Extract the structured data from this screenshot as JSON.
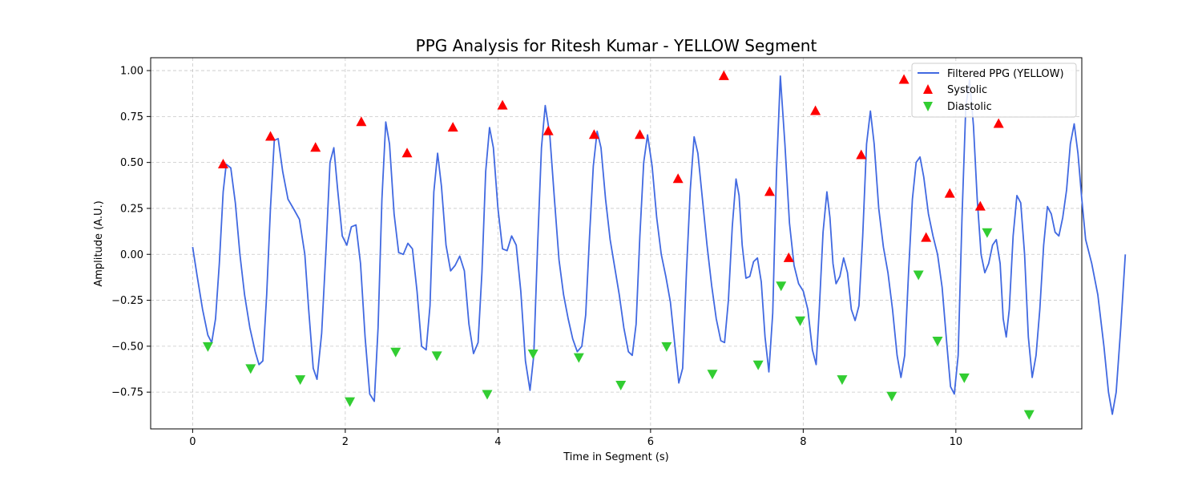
{
  "chart_data": {
    "type": "line",
    "title": "PPG Analysis for Ritesh Kumar - YELLOW Segment",
    "xlabel": "Time in Segment (s)",
    "ylabel": "Amplitude (A.U.)",
    "xlim": [
      -0.55,
      11.65
    ],
    "ylim": [
      -0.95,
      1.07
    ],
    "xticks": [
      0,
      2,
      4,
      6,
      8,
      10
    ],
    "yticks": [
      -0.75,
      -0.5,
      -0.25,
      0.0,
      0.25,
      0.5,
      0.75,
      1.0
    ],
    "xtick_labels": [
      "0",
      "2",
      "4",
      "6",
      "8",
      "10"
    ],
    "ytick_labels": [
      "−0.75",
      "−0.50",
      "−0.25",
      "0.00",
      "0.25",
      "0.50",
      "0.75",
      "1.00"
    ],
    "grid": true,
    "legend_position": "top-right",
    "series": [
      {
        "name": "Filtered PPG (YELLOW)",
        "color": "#4169e1",
        "points": [
          [
            0.0,
            0.04
          ],
          [
            0.06,
            -0.12
          ],
          [
            0.13,
            -0.3
          ],
          [
            0.2,
            -0.44
          ],
          [
            0.25,
            -0.48
          ],
          [
            0.3,
            -0.35
          ],
          [
            0.35,
            -0.05
          ],
          [
            0.4,
            0.34
          ],
          [
            0.44,
            0.49
          ],
          [
            0.5,
            0.47
          ],
          [
            0.56,
            0.28
          ],
          [
            0.62,
            0.0
          ],
          [
            0.68,
            -0.22
          ],
          [
            0.75,
            -0.4
          ],
          [
            0.82,
            -0.53
          ],
          [
            0.87,
            -0.6
          ],
          [
            0.92,
            -0.58
          ],
          [
            0.97,
            -0.22
          ],
          [
            1.02,
            0.25
          ],
          [
            1.07,
            0.62
          ],
          [
            1.12,
            0.63
          ],
          [
            1.18,
            0.45
          ],
          [
            1.25,
            0.3
          ],
          [
            1.32,
            0.25
          ],
          [
            1.4,
            0.19
          ],
          [
            1.47,
            0.0
          ],
          [
            1.52,
            -0.3
          ],
          [
            1.58,
            -0.62
          ],
          [
            1.63,
            -0.68
          ],
          [
            1.69,
            -0.43
          ],
          [
            1.75,
            0.05
          ],
          [
            1.8,
            0.5
          ],
          [
            1.85,
            0.58
          ],
          [
            1.9,
            0.35
          ],
          [
            1.96,
            0.1
          ],
          [
            2.02,
            0.05
          ],
          [
            2.08,
            0.15
          ],
          [
            2.14,
            0.16
          ],
          [
            2.2,
            -0.05
          ],
          [
            2.26,
            -0.45
          ],
          [
            2.32,
            -0.76
          ],
          [
            2.38,
            -0.8
          ],
          [
            2.43,
            -0.4
          ],
          [
            2.48,
            0.3
          ],
          [
            2.53,
            0.72
          ],
          [
            2.58,
            0.6
          ],
          [
            2.64,
            0.22
          ],
          [
            2.7,
            0.01
          ],
          [
            2.76,
            0.0
          ],
          [
            2.82,
            0.06
          ],
          [
            2.88,
            0.03
          ],
          [
            2.94,
            -0.2
          ],
          [
            3.0,
            -0.5
          ],
          [
            3.06,
            -0.52
          ],
          [
            3.11,
            -0.28
          ],
          [
            3.16,
            0.34
          ],
          [
            3.21,
            0.55
          ],
          [
            3.26,
            0.37
          ],
          [
            3.32,
            0.05
          ],
          [
            3.38,
            -0.09
          ],
          [
            3.44,
            -0.06
          ],
          [
            3.5,
            -0.01
          ],
          [
            3.56,
            -0.09
          ],
          [
            3.62,
            -0.38
          ],
          [
            3.68,
            -0.54
          ],
          [
            3.74,
            -0.48
          ],
          [
            3.79,
            -0.1
          ],
          [
            3.84,
            0.45
          ],
          [
            3.89,
            0.69
          ],
          [
            3.94,
            0.58
          ],
          [
            4.0,
            0.25
          ],
          [
            4.06,
            0.03
          ],
          [
            4.12,
            0.02
          ],
          [
            4.18,
            0.1
          ],
          [
            4.24,
            0.05
          ],
          [
            4.3,
            -0.2
          ],
          [
            4.36,
            -0.58
          ],
          [
            4.42,
            -0.74
          ],
          [
            4.47,
            -0.55
          ],
          [
            4.52,
            0.05
          ],
          [
            4.57,
            0.58
          ],
          [
            4.62,
            0.81
          ],
          [
            4.68,
            0.65
          ],
          [
            4.74,
            0.3
          ],
          [
            4.8,
            -0.03
          ],
          [
            4.86,
            -0.22
          ],
          [
            4.92,
            -0.35
          ],
          [
            4.98,
            -0.46
          ],
          [
            5.04,
            -0.53
          ],
          [
            5.1,
            -0.5
          ],
          [
            5.15,
            -0.33
          ],
          [
            5.2,
            0.1
          ],
          [
            5.25,
            0.48
          ],
          [
            5.3,
            0.67
          ],
          [
            5.35,
            0.58
          ],
          [
            5.41,
            0.3
          ],
          [
            5.47,
            0.08
          ],
          [
            5.53,
            -0.07
          ],
          [
            5.59,
            -0.22
          ],
          [
            5.65,
            -0.4
          ],
          [
            5.71,
            -0.53
          ],
          [
            5.76,
            -0.55
          ],
          [
            5.81,
            -0.38
          ],
          [
            5.86,
            0.1
          ],
          [
            5.91,
            0.5
          ],
          [
            5.96,
            0.65
          ],
          [
            6.02,
            0.48
          ],
          [
            6.08,
            0.2
          ],
          [
            6.14,
            0.0
          ],
          [
            6.2,
            -0.12
          ],
          [
            6.26,
            -0.26
          ],
          [
            6.32,
            -0.5
          ],
          [
            6.37,
            -0.7
          ],
          [
            6.42,
            -0.62
          ],
          [
            6.47,
            -0.1
          ],
          [
            6.52,
            0.35
          ],
          [
            6.57,
            0.64
          ],
          [
            6.62,
            0.55
          ],
          [
            6.68,
            0.3
          ],
          [
            6.74,
            0.05
          ],
          [
            6.8,
            -0.17
          ],
          [
            6.86,
            -0.35
          ],
          [
            6.92,
            -0.47
          ],
          [
            6.97,
            -0.48
          ],
          [
            7.02,
            -0.25
          ],
          [
            7.07,
            0.15
          ],
          [
            7.12,
            0.41
          ],
          [
            7.16,
            0.32
          ],
          [
            7.2,
            0.05
          ],
          [
            7.25,
            -0.13
          ],
          [
            7.3,
            -0.12
          ],
          [
            7.35,
            -0.04
          ],
          [
            7.4,
            -0.02
          ],
          [
            7.45,
            -0.15
          ],
          [
            7.5,
            -0.45
          ],
          [
            7.55,
            -0.64
          ],
          [
            7.6,
            -0.32
          ],
          [
            7.65,
            0.45
          ],
          [
            7.7,
            0.97
          ],
          [
            7.76,
            0.6
          ],
          [
            7.82,
            0.17
          ],
          [
            7.88,
            -0.06
          ],
          [
            7.94,
            -0.16
          ],
          [
            8.0,
            -0.2
          ],
          [
            8.06,
            -0.3
          ],
          [
            8.12,
            -0.52
          ],
          [
            8.17,
            -0.6
          ],
          [
            8.21,
            -0.3
          ],
          [
            8.26,
            0.12
          ],
          [
            8.31,
            0.34
          ],
          [
            8.35,
            0.2
          ],
          [
            8.39,
            -0.05
          ],
          [
            8.43,
            -0.16
          ],
          [
            8.48,
            -0.12
          ],
          [
            8.53,
            -0.02
          ],
          [
            8.58,
            -0.1
          ],
          [
            8.63,
            -0.3
          ],
          [
            8.68,
            -0.36
          ],
          [
            8.73,
            -0.28
          ],
          [
            8.78,
            0.1
          ],
          [
            8.83,
            0.6
          ],
          [
            8.88,
            0.78
          ],
          [
            8.93,
            0.6
          ],
          [
            8.99,
            0.25
          ],
          [
            9.05,
            0.04
          ],
          [
            9.11,
            -0.1
          ],
          [
            9.17,
            -0.3
          ],
          [
            9.23,
            -0.55
          ],
          [
            9.28,
            -0.67
          ],
          [
            9.33,
            -0.55
          ],
          [
            9.38,
            -0.1
          ],
          [
            9.43,
            0.3
          ],
          [
            9.48,
            0.5
          ],
          [
            9.53,
            0.53
          ],
          [
            9.58,
            0.42
          ],
          [
            9.64,
            0.22
          ],
          [
            9.7,
            0.1
          ],
          [
            9.76,
            0.0
          ],
          [
            9.82,
            -0.18
          ],
          [
            9.88,
            -0.48
          ],
          [
            9.93,
            -0.72
          ],
          [
            9.98,
            -0.76
          ],
          [
            10.03,
            -0.55
          ],
          [
            10.08,
            0.2
          ],
          [
            10.13,
            0.8
          ],
          [
            10.18,
            0.95
          ],
          [
            10.23,
            0.7
          ],
          [
            10.28,
            0.3
          ],
          [
            10.33,
            0.0
          ],
          [
            10.38,
            -0.1
          ],
          [
            10.43,
            -0.05
          ],
          [
            10.48,
            0.05
          ],
          [
            10.53,
            0.08
          ],
          [
            10.58,
            -0.05
          ],
          [
            10.62,
            -0.35
          ],
          [
            10.66,
            -0.45
          ],
          [
            10.7,
            -0.3
          ],
          [
            10.75,
            0.1
          ],
          [
            10.8,
            0.32
          ],
          [
            10.85,
            0.28
          ],
          [
            10.9,
            0.0
          ],
          [
            10.95,
            -0.45
          ],
          [
            11.0,
            -0.67
          ],
          [
            11.05,
            -0.55
          ],
          [
            11.1,
            -0.3
          ],
          [
            11.15,
            0.05
          ],
          [
            11.2,
            0.26
          ],
          [
            11.25,
            0.22
          ],
          [
            11.3,
            0.12
          ],
          [
            11.35,
            0.1
          ],
          [
            11.4,
            0.2
          ],
          [
            11.45,
            0.35
          ],
          [
            11.5,
            0.6
          ],
          [
            11.55,
            0.71
          ],
          [
            11.6,
            0.55
          ],
          [
            11.65,
            0.3
          ],
          [
            11.7,
            0.08
          ],
          [
            11.78,
            -0.05
          ],
          [
            11.86,
            -0.22
          ],
          [
            11.94,
            -0.5
          ],
          [
            12.0,
            -0.75
          ],
          [
            12.05,
            -0.87
          ],
          [
            12.1,
            -0.75
          ],
          [
            12.16,
            -0.4
          ],
          [
            12.22,
            0.0
          ]
        ]
      },
      {
        "name": "Systolic",
        "color": "#ff0000",
        "marker": "triangle-up",
        "points": [
          [
            0.4,
            0.49
          ],
          [
            1.02,
            0.64
          ],
          [
            1.61,
            0.58
          ],
          [
            2.21,
            0.72
          ],
          [
            2.81,
            0.55
          ],
          [
            3.41,
            0.69
          ],
          [
            4.06,
            0.81
          ],
          [
            4.66,
            0.67
          ],
          [
            5.26,
            0.65
          ],
          [
            5.86,
            0.65
          ],
          [
            6.36,
            0.41
          ],
          [
            6.96,
            0.97
          ],
          [
            7.56,
            0.34
          ],
          [
            7.81,
            -0.02
          ],
          [
            8.16,
            0.78
          ],
          [
            8.76,
            0.54
          ],
          [
            9.32,
            0.95
          ],
          [
            9.61,
            0.09
          ],
          [
            9.92,
            0.33
          ],
          [
            10.32,
            0.26
          ],
          [
            10.56,
            0.71
          ]
        ]
      },
      {
        "name": "Diastolic",
        "color": "#32cd32",
        "marker": "triangle-down",
        "points": [
          [
            0.2,
            -0.5
          ],
          [
            0.76,
            -0.62
          ],
          [
            1.41,
            -0.68
          ],
          [
            2.06,
            -0.8
          ],
          [
            2.66,
            -0.53
          ],
          [
            3.2,
            -0.55
          ],
          [
            3.86,
            -0.76
          ],
          [
            4.46,
            -0.54
          ],
          [
            5.06,
            -0.56
          ],
          [
            5.61,
            -0.71
          ],
          [
            6.21,
            -0.5
          ],
          [
            6.81,
            -0.65
          ],
          [
            7.41,
            -0.6
          ],
          [
            7.71,
            -0.17
          ],
          [
            7.96,
            -0.36
          ],
          [
            8.51,
            -0.68
          ],
          [
            9.16,
            -0.77
          ],
          [
            9.51,
            -0.11
          ],
          [
            9.76,
            -0.47
          ],
          [
            10.11,
            -0.67
          ],
          [
            10.41,
            0.12
          ],
          [
            10.96,
            -0.87
          ]
        ]
      }
    ]
  }
}
